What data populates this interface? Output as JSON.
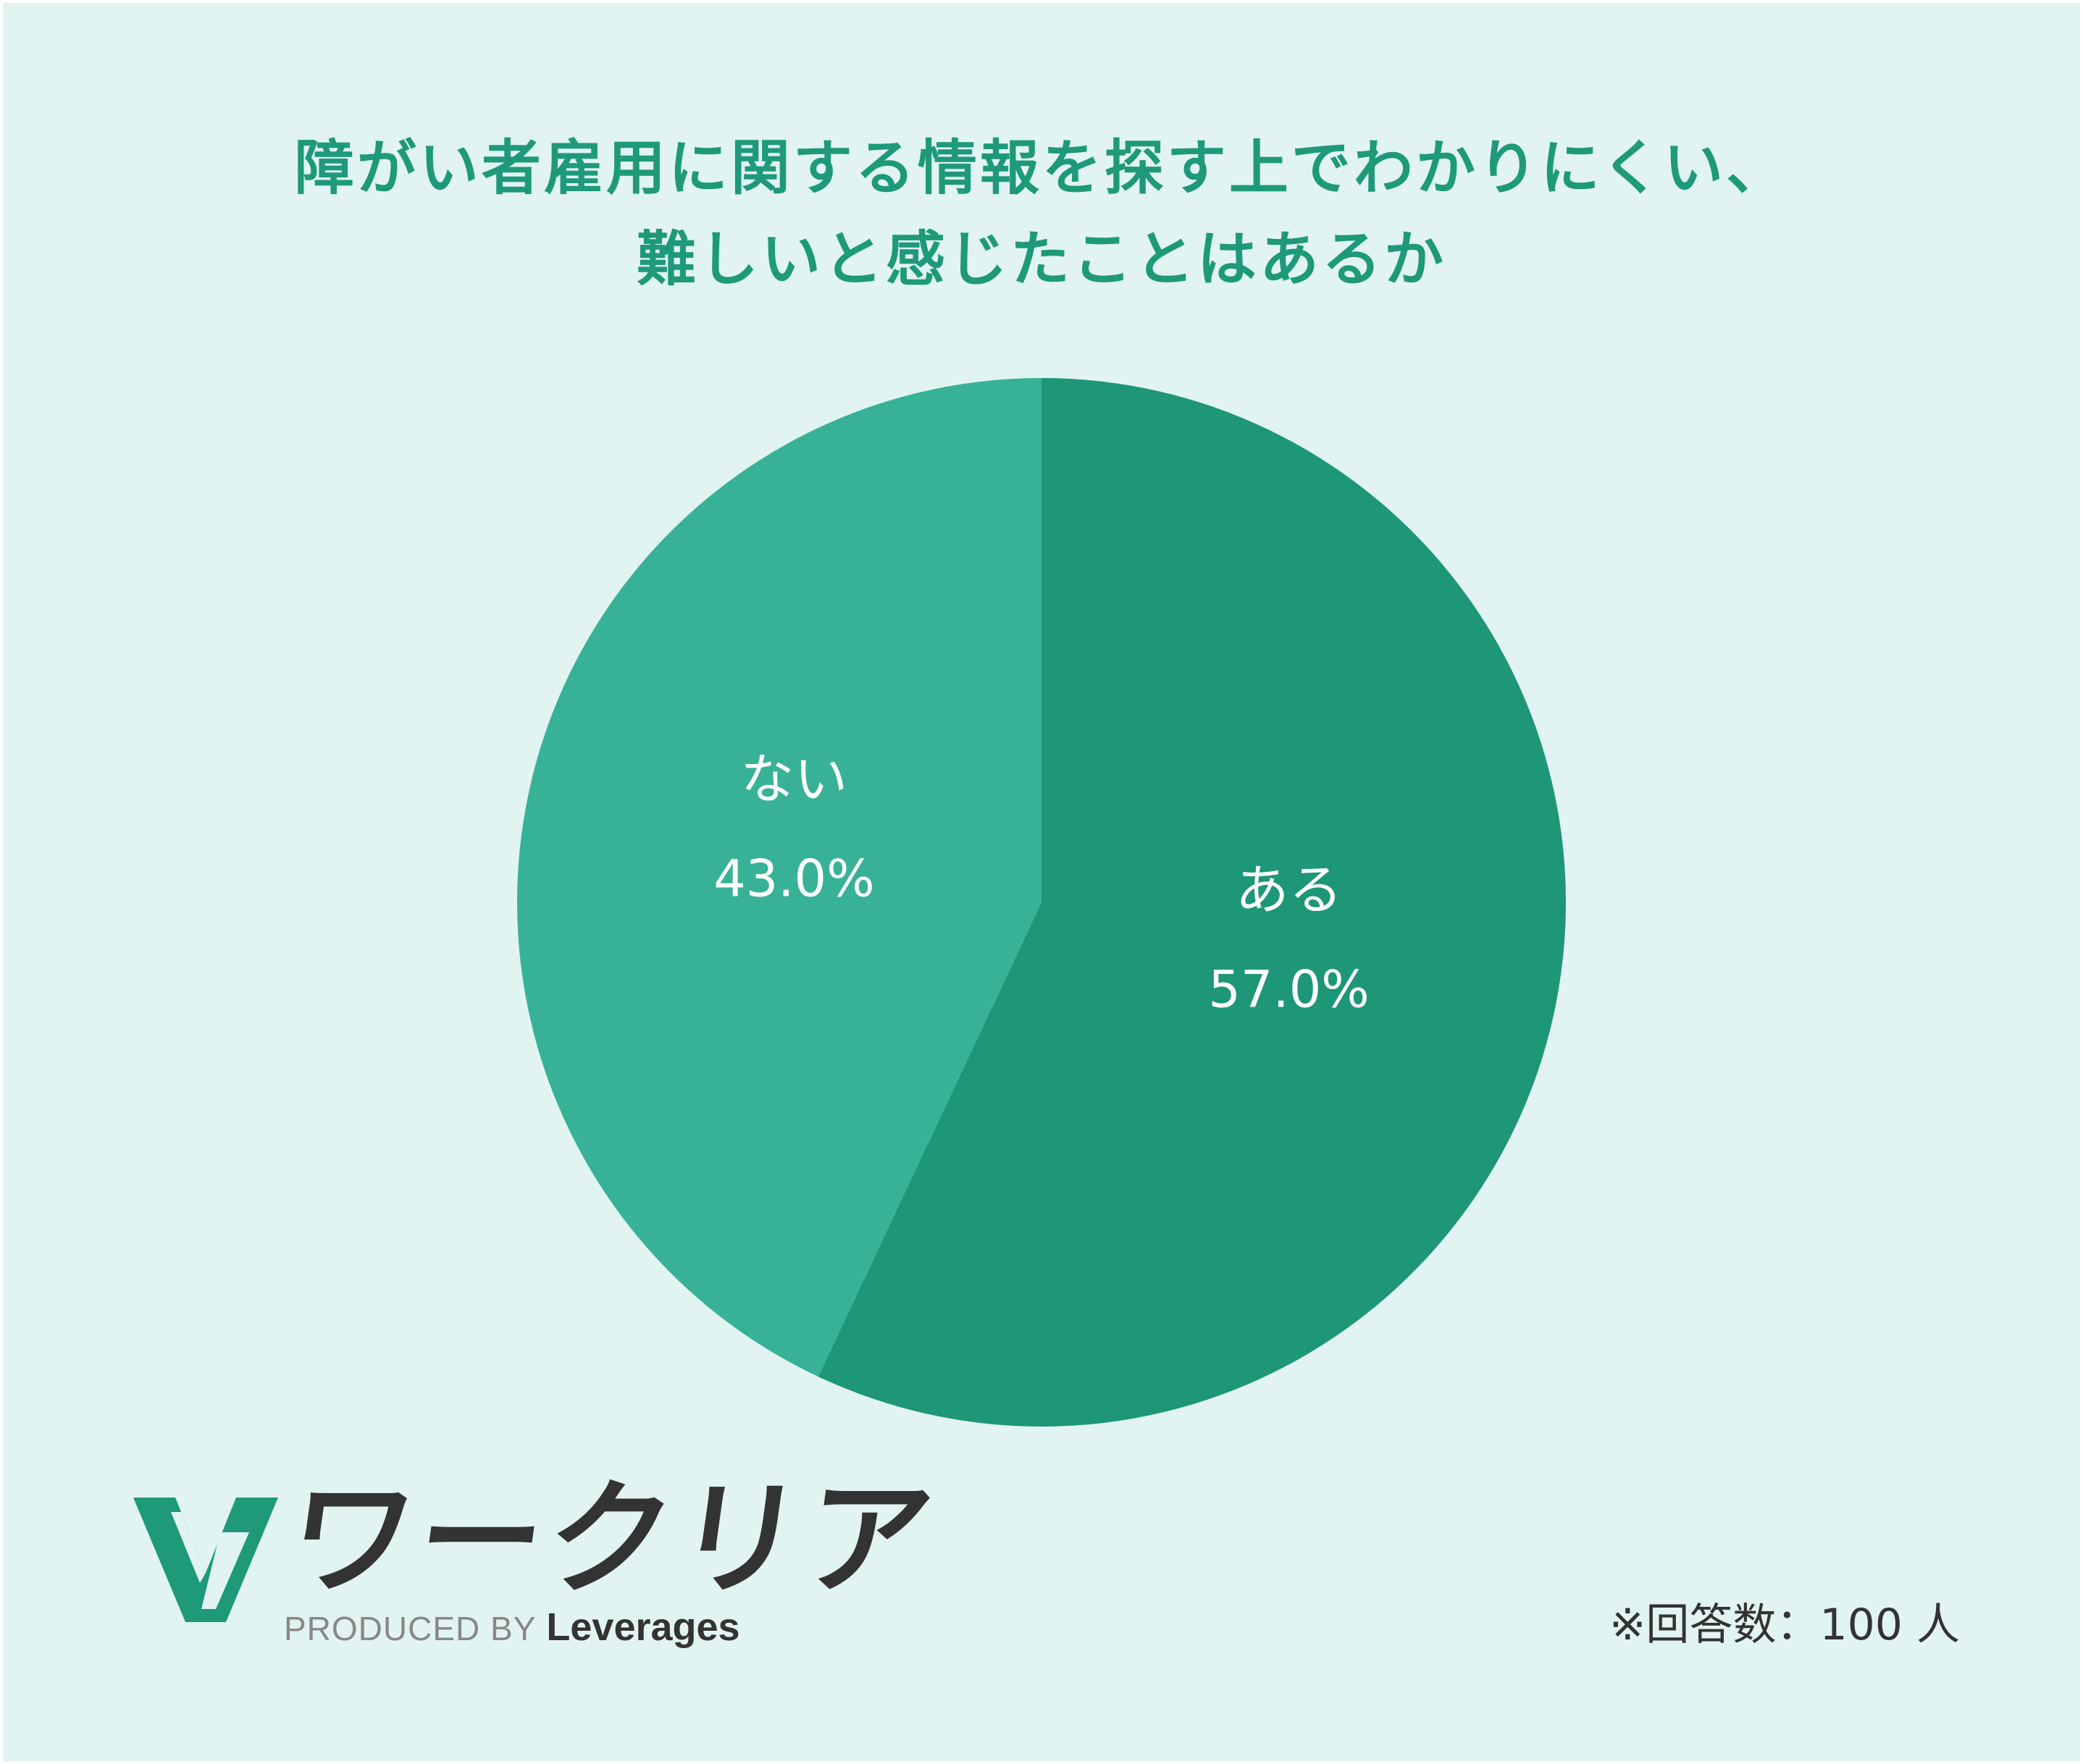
{
  "chart_data": {
    "type": "pie",
    "title": "障がい者雇用に関する情報を探す上でわかりにくい、難しいと感じたことはあるか",
    "title_lines": [
      "障がい者雇用に関する情報を探す上でわかりにくい、",
      "難しいと感じたことはあるか"
    ],
    "slices": [
      {
        "label": "ある",
        "value": 57.0,
        "display": "57.0%",
        "color": "#1e9678"
      },
      {
        "label": "ない",
        "value": 43.0,
        "display": "43.0%",
        "color": "#38b297"
      }
    ],
    "start_angle": "12 o'clock",
    "direction": "clockwise"
  },
  "logo": {
    "text": "ワークリア",
    "produced_by": "PRODUCED BY",
    "brand": "Leverages",
    "icon": "w-logo-icon",
    "icon_color": "#1e9a78"
  },
  "note": "※回答数：100 人",
  "colors": {
    "background": "#e1f4f1",
    "title": "#1e9a78",
    "label": "#ffffff",
    "text_dark": "#333333"
  }
}
